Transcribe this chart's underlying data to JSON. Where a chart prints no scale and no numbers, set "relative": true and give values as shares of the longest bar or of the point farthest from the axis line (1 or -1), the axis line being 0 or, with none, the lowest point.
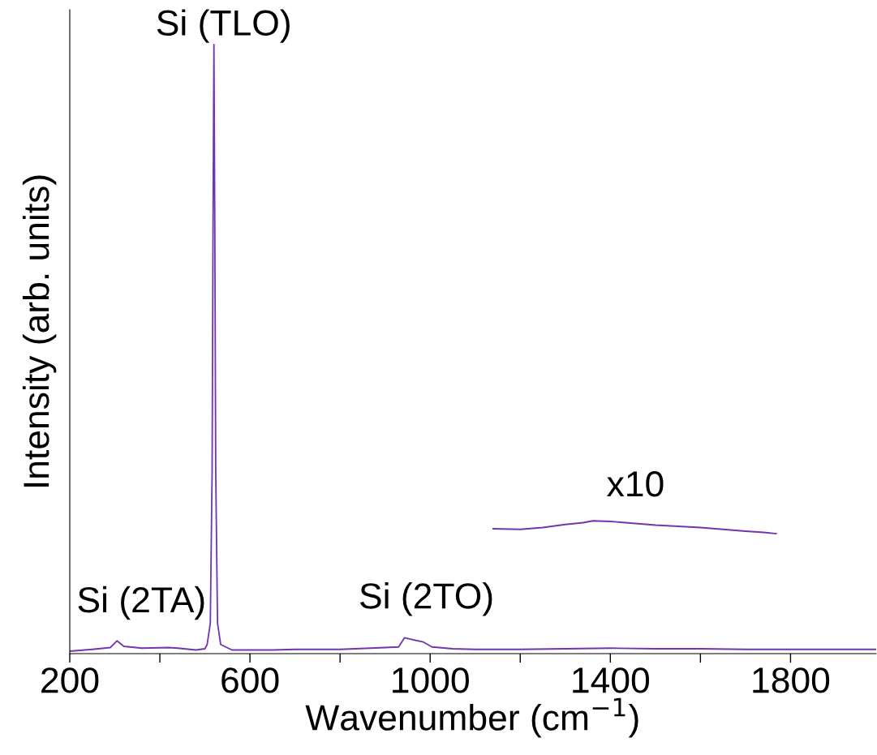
{
  "chart_data": {
    "type": "line",
    "relative": true,
    "xlabel": "Wavenumber (cm$^{−1}$)",
    "ylabel": "Intensity (arb. units)",
    "xlim": [
      200,
      1990
    ],
    "xticks": [
      200,
      {
        "value": 400,
        "label": null
      },
      600,
      {
        "value": 800,
        "label": null
      },
      1000,
      {
        "value": 1200,
        "label": null
      },
      1400,
      {
        "value": 1600,
        "label": null
      },
      1800
    ],
    "grid": false,
    "marker": "none",
    "line_style": "solid",
    "series": [
      {
        "color": "#7234b0",
        "x": [
          200,
          250,
          290,
          305,
          320,
          360,
          420,
          440,
          480,
          500,
          505,
          512,
          516,
          518,
          520,
          522,
          524,
          528,
          535,
          560,
          650,
          700,
          800,
          900,
          930,
          943,
          960,
          985,
          1004,
          1050,
          1100,
          1200,
          1300,
          1400,
          1500,
          1600,
          1700,
          1800,
          1900,
          1990
        ],
        "values": [
          0.004,
          0.007,
          0.01,
          0.021,
          0.012,
          0.009,
          0.01,
          0.009,
          0.006,
          0.008,
          0.015,
          0.05,
          0.3,
          0.7,
          1.0,
          0.7,
          0.3,
          0.05,
          0.015,
          0.006,
          0.006,
          0.007,
          0.007,
          0.01,
          0.011,
          0.026,
          0.023,
          0.019,
          0.011,
          0.008,
          0.007,
          0.007,
          0.008,
          0.009,
          0.008,
          0.008,
          0.007,
          0.007,
          0.007,
          0.007
        ]
      },
      {
        "color": "#7234b0",
        "x": [
          1140,
          1200,
          1250,
          1300,
          1340,
          1361,
          1400,
          1450,
          1500,
          1550,
          1600,
          1650,
          1700,
          1740,
          1768
        ],
        "values": [
          0.205,
          0.204,
          0.207,
          0.212,
          0.215,
          0.218,
          0.217,
          0.214,
          0.211,
          0.209,
          0.207,
          0.204,
          0.201,
          0.199,
          0.197
        ]
      }
    ],
    "annotations": [
      {
        "text": "Si (TLO)",
        "x": 520,
        "y": 1.0
      },
      {
        "text": "Si (2TA)",
        "x": 305,
        "y": 0.021
      },
      {
        "text": "Si (2TO)",
        "x": 943,
        "y": 0.026
      },
      {
        "text": "x10",
        "x": 1456,
        "y": 0.214
      }
    ]
  }
}
